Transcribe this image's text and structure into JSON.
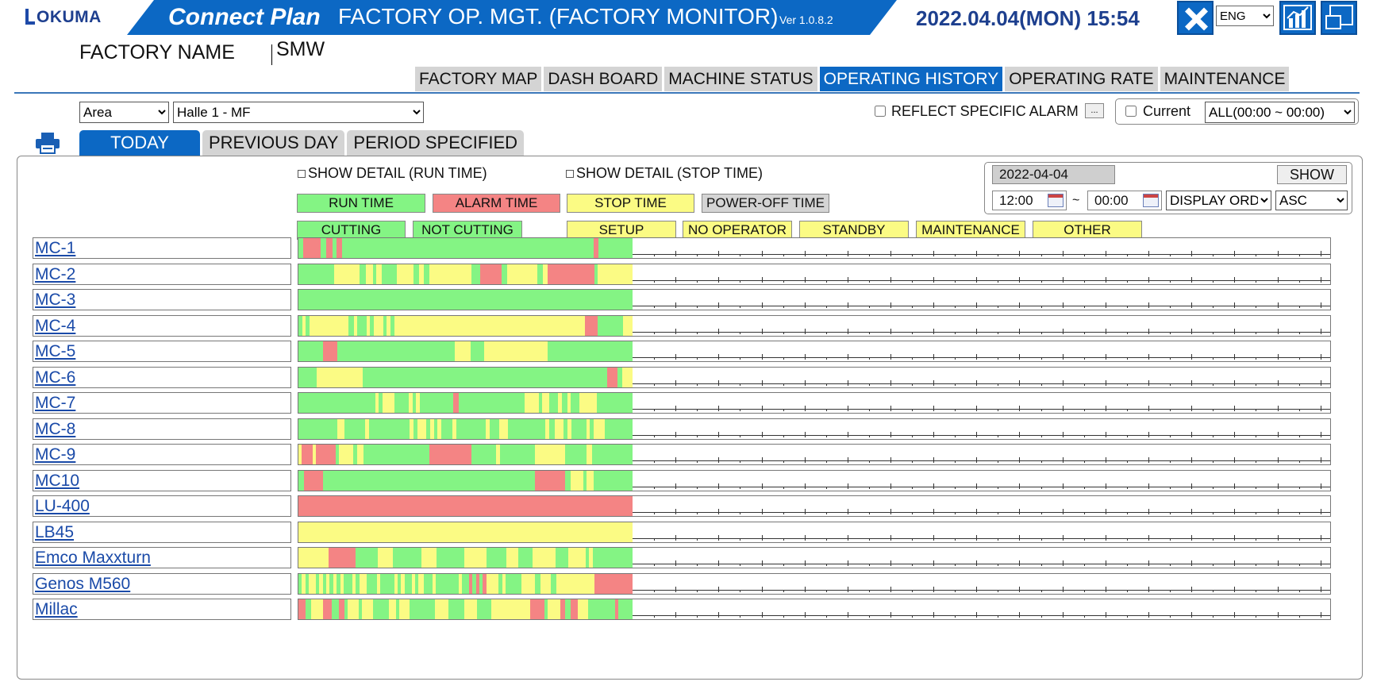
{
  "header": {
    "logo_text": "OKUMA",
    "brand": "Connect Plan",
    "title": "FACTORY OP. MGT. (FACTORY MONITOR)",
    "version": "Ver 1.0.8.2",
    "datetime": "2022.04.04(MON) 15:54",
    "language": "ENG",
    "factory_label": "FACTORY NAME",
    "factory_value": "SMW"
  },
  "main_tabs": [
    "FACTORY MAP",
    "DASH BOARD",
    "MACHINE STATUS",
    "OPERATING HISTORY",
    "OPERATING RATE",
    "MAINTENANCE"
  ],
  "active_main_tab": "OPERATING HISTORY",
  "filters": {
    "area": "Area",
    "location": "Halle 1 - MF",
    "reflect_alarm_label": "REFLECT SPECIFIC ALARM",
    "reflect_alarm_button": "...",
    "current_label": "Current",
    "current_range": "ALL(00:00 ~ 00:00)"
  },
  "sub_tabs": [
    "TODAY",
    "PREVIOUS DAY",
    "PERIOD SPECIFIED"
  ],
  "active_sub_tab": "TODAY",
  "legend": {
    "show_detail_run": "SHOW DETAIL (RUN TIME)",
    "show_detail_stop": "SHOW DETAIL (STOP TIME)",
    "run_time": "RUN TIME",
    "alarm_time": "ALARM TIME",
    "stop_time": "STOP TIME",
    "power_off_time": "POWER-OFF TIME",
    "cutting": "CUTTING",
    "not_cutting": "NOT CUTTING",
    "setup": "SETUP",
    "no_operator": "NO OPERATOR",
    "standby": "STANDBY",
    "maintenance": "MAINTENANCE",
    "other": "OTHER"
  },
  "date_panel": {
    "date": "2022-04-04",
    "show_label": "SHOW",
    "from_time": "12:00",
    "separator": "~",
    "to_time": "00:00",
    "display_order": "DISPLAY ORDER",
    "sort": "ASC"
  },
  "colors": {
    "run": "#84f484",
    "alarm": "#f48484",
    "stop": "#fbfb84",
    "power_off": "#d4d4d4",
    "accent": "#0c68c4"
  },
  "timeline": {
    "elapsed_fraction": 0.3242,
    "major_ticks": 24,
    "machines": [
      {
        "name": "MC-1",
        "segments": [
          [
            "g",
            5
          ],
          [
            "r",
            20
          ],
          [
            "g",
            6
          ],
          [
            "r",
            8
          ],
          [
            "g",
            4
          ],
          [
            "r",
            6
          ],
          [
            "g",
            285
          ],
          [
            "r",
            5
          ],
          [
            "g",
            39
          ]
        ]
      },
      {
        "name": "MC-2",
        "segments": [
          [
            "g",
            42
          ],
          [
            "y",
            30
          ],
          [
            "g",
            8
          ],
          [
            "y",
            8
          ],
          [
            "g",
            4
          ],
          [
            "y",
            6
          ],
          [
            "g",
            18
          ],
          [
            "y",
            20
          ],
          [
            "g",
            6
          ],
          [
            "y",
            6
          ],
          [
            "g",
            6
          ],
          [
            "y",
            50
          ],
          [
            "g",
            10
          ],
          [
            "r",
            26
          ],
          [
            "g",
            6
          ],
          [
            "y",
            36
          ],
          [
            "g",
            6
          ],
          [
            "y",
            6
          ],
          [
            "r",
            55
          ],
          [
            "g",
            4
          ],
          [
            "y",
            41
          ]
        ]
      },
      {
        "name": "MC-3",
        "segments": [
          [
            "g",
            378
          ]
        ]
      },
      {
        "name": "MC-4",
        "segments": [
          [
            "g",
            4
          ],
          [
            "y",
            4
          ],
          [
            "g",
            4
          ],
          [
            "y",
            42
          ],
          [
            "g",
            6
          ],
          [
            "y",
            4
          ],
          [
            "g",
            10
          ],
          [
            "y",
            4
          ],
          [
            "g",
            4
          ],
          [
            "y",
            10
          ],
          [
            "g",
            4
          ],
          [
            "y",
            4
          ],
          [
            "g",
            4
          ],
          [
            "y",
            207
          ],
          [
            "r",
            14
          ],
          [
            "g",
            28
          ],
          [
            "y",
            10
          ]
        ]
      },
      {
        "name": "MC-5",
        "segments": [
          [
            "g",
            28
          ],
          [
            "r",
            16
          ],
          [
            "g",
            133
          ],
          [
            "y",
            18
          ],
          [
            "g",
            15
          ],
          [
            "y",
            72
          ],
          [
            "g",
            96
          ]
        ]
      },
      {
        "name": "MC-6",
        "segments": [
          [
            "g",
            21
          ],
          [
            "y",
            52
          ],
          [
            "g",
            276
          ],
          [
            "r",
            12
          ],
          [
            "g",
            5
          ],
          [
            "y",
            12
          ]
        ]
      },
      {
        "name": "MC-7",
        "segments": [
          [
            "g",
            87
          ],
          [
            "y",
            4
          ],
          [
            "g",
            4
          ],
          [
            "y",
            14
          ],
          [
            "g",
            16
          ],
          [
            "y",
            4
          ],
          [
            "g",
            4
          ],
          [
            "y",
            4
          ],
          [
            "g",
            38
          ],
          [
            "r",
            6
          ],
          [
            "g",
            75
          ],
          [
            "y",
            16
          ],
          [
            "g",
            4
          ],
          [
            "y",
            8
          ],
          [
            "g",
            10
          ],
          [
            "y",
            4
          ],
          [
            "g",
            6
          ],
          [
            "y",
            4
          ],
          [
            "g",
            10
          ],
          [
            "y",
            20
          ],
          [
            "g",
            40
          ]
        ]
      },
      {
        "name": "MC-8",
        "segments": [
          [
            "g",
            42
          ],
          [
            "y",
            8
          ],
          [
            "g",
            22
          ],
          [
            "y",
            4
          ],
          [
            "g",
            44
          ],
          [
            "y",
            4
          ],
          [
            "g",
            4
          ],
          [
            "y",
            10
          ],
          [
            "g",
            4
          ],
          [
            "y",
            4
          ],
          [
            "g",
            4
          ],
          [
            "y",
            4
          ],
          [
            "g",
            12
          ],
          [
            "y",
            4
          ],
          [
            "g",
            32
          ],
          [
            "y",
            4
          ],
          [
            "g",
            10
          ],
          [
            "y",
            10
          ],
          [
            "g",
            40
          ],
          [
            "y",
            4
          ],
          [
            "g",
            6
          ],
          [
            "y",
            10
          ],
          [
            "g",
            4
          ],
          [
            "y",
            4
          ],
          [
            "g",
            16
          ],
          [
            "y",
            4
          ],
          [
            "g",
            4
          ],
          [
            "y",
            12
          ],
          [
            "g",
            30
          ]
        ]
      },
      {
        "name": "MC-9",
        "segments": [
          [
            "y",
            4
          ],
          [
            "r",
            12
          ],
          [
            "y",
            4
          ],
          [
            "r",
            22
          ],
          [
            "g",
            4
          ],
          [
            "y",
            16
          ],
          [
            "g",
            4
          ],
          [
            "y",
            8
          ],
          [
            "g",
            74
          ],
          [
            "r",
            48
          ],
          [
            "g",
            28
          ],
          [
            "y",
            4
          ],
          [
            "g",
            40
          ],
          [
            "y",
            34
          ],
          [
            "g",
            24
          ],
          [
            "y",
            6
          ],
          [
            "g",
            46
          ]
        ]
      },
      {
        "name": "MC10",
        "segments": [
          [
            "g",
            6
          ],
          [
            "r",
            22
          ],
          [
            "g",
            240
          ],
          [
            "r",
            34
          ],
          [
            "g",
            6
          ],
          [
            "y",
            14
          ],
          [
            "g",
            4
          ],
          [
            "y",
            8
          ],
          [
            "g",
            44
          ]
        ]
      },
      {
        "name": "LU-400",
        "segments": [
          [
            "r",
            378
          ]
        ]
      },
      {
        "name": "LB45",
        "segments": [
          [
            "y",
            378
          ]
        ]
      },
      {
        "name": "Emco Maxxturn",
        "segments": [
          [
            "y",
            34
          ],
          [
            "r",
            31
          ],
          [
            "g",
            25
          ],
          [
            "y",
            17
          ],
          [
            "g",
            32
          ],
          [
            "y",
            17
          ],
          [
            "g",
            32
          ],
          [
            "y",
            25
          ],
          [
            "g",
            22
          ],
          [
            "y",
            14
          ],
          [
            "g",
            16
          ],
          [
            "y",
            26
          ],
          [
            "g",
            14
          ],
          [
            "y",
            20
          ],
          [
            "g",
            4
          ],
          [
            "y",
            4
          ],
          [
            "g",
            45
          ]
        ]
      },
      {
        "name": "Genos M560",
        "segments": [
          [
            "g",
            4
          ],
          [
            "y",
            4
          ],
          [
            "g",
            4
          ],
          [
            "y",
            8
          ],
          [
            "g",
            4
          ],
          [
            "y",
            4
          ],
          [
            "g",
            4
          ],
          [
            "y",
            4
          ],
          [
            "g",
            4
          ],
          [
            "y",
            4
          ],
          [
            "g",
            4
          ],
          [
            "y",
            4
          ],
          [
            "g",
            10
          ],
          [
            "y",
            4
          ],
          [
            "g",
            4
          ],
          [
            "y",
            8
          ],
          [
            "g",
            12
          ],
          [
            "y",
            4
          ],
          [
            "g",
            16
          ],
          [
            "y",
            4
          ],
          [
            "g",
            4
          ],
          [
            "y",
            4
          ],
          [
            "g",
            8
          ],
          [
            "y",
            4
          ],
          [
            "g",
            4
          ],
          [
            "y",
            6
          ],
          [
            "g",
            10
          ],
          [
            "y",
            4
          ],
          [
            "g",
            26
          ],
          [
            "y",
            4
          ],
          [
            "g",
            8
          ],
          [
            "r",
            4
          ],
          [
            "g",
            4
          ],
          [
            "r",
            4
          ],
          [
            "g",
            4
          ],
          [
            "r",
            4
          ],
          [
            "y",
            14
          ],
          [
            "g",
            4
          ],
          [
            "y",
            4
          ],
          [
            "g",
            18
          ],
          [
            "y",
            16
          ],
          [
            "g",
            6
          ],
          [
            "y",
            12
          ],
          [
            "g",
            6
          ],
          [
            "y",
            44
          ],
          [
            "r",
            44
          ]
        ]
      },
      {
        "name": "Millac",
        "segments": [
          [
            "r",
            8
          ],
          [
            "g",
            6
          ],
          [
            "y",
            14
          ],
          [
            "r",
            10
          ],
          [
            "g",
            8
          ],
          [
            "r",
            6
          ],
          [
            "g",
            4
          ],
          [
            "y",
            12
          ],
          [
            "g",
            4
          ],
          [
            "y",
            12
          ],
          [
            "g",
            18
          ],
          [
            "y",
            8
          ],
          [
            "g",
            4
          ],
          [
            "y",
            12
          ],
          [
            "g",
            28
          ],
          [
            "y",
            16
          ],
          [
            "g",
            18
          ],
          [
            "y",
            14
          ],
          [
            "g",
            16
          ],
          [
            "y",
            44
          ],
          [
            "r",
            16
          ],
          [
            "g",
            4
          ],
          [
            "y",
            14
          ],
          [
            "r",
            6
          ],
          [
            "g",
            6
          ],
          [
            "r",
            8
          ],
          [
            "y",
            12
          ],
          [
            "g",
            30
          ],
          [
            "r",
            4
          ],
          [
            "g",
            16
          ]
        ]
      }
    ]
  }
}
